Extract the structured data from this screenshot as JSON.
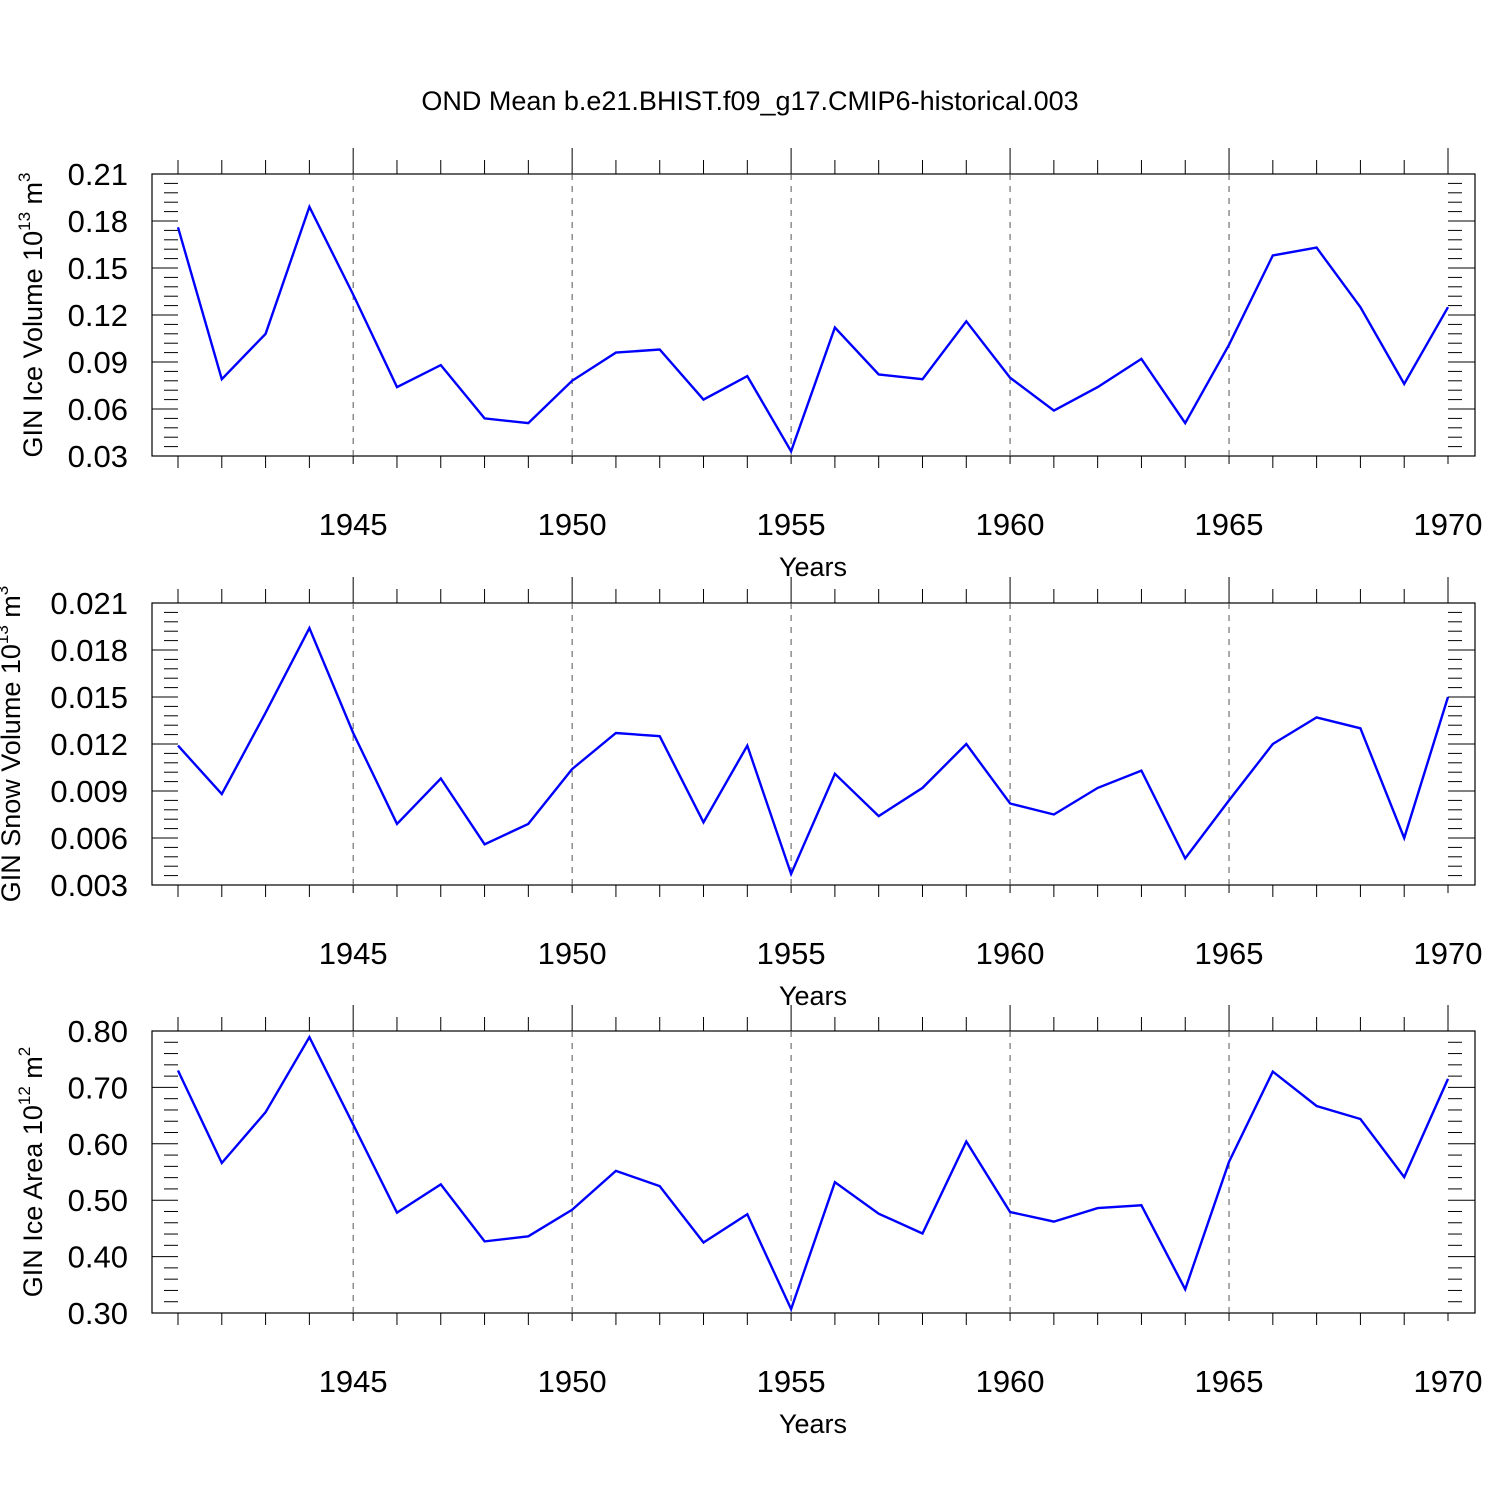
{
  "figure": {
    "title": "OND Mean b.e21.BHIST.f09_g17.CMIP6-historical.003"
  },
  "chart_data": [
    {
      "type": "line",
      "ylabel_main": "GIN Ice Volume 10",
      "ylabel_exp": "13",
      "ylabel_unit": " m",
      "ylabel_unit_exp": "3",
      "xlabel": "Years",
      "xlim": [
        1941,
        1970
      ],
      "ylim": [
        0.03,
        0.21
      ],
      "yticks": [
        "0.03",
        "0.06",
        "0.09",
        "0.12",
        "0.15",
        "0.18",
        "0.21"
      ],
      "xticks": [
        "1945",
        "1950",
        "1955",
        "1960",
        "1965",
        "1970"
      ],
      "grid": "vertical dashed at major x ticks",
      "color": "#0000ff",
      "x": [
        1941,
        1942,
        1943,
        1944,
        1945,
        1946,
        1947,
        1948,
        1949,
        1950,
        1951,
        1952,
        1953,
        1954,
        1955,
        1956,
        1957,
        1958,
        1959,
        1960,
        1961,
        1962,
        1963,
        1964,
        1965,
        1966,
        1967,
        1968,
        1969,
        1970
      ],
      "y": [
        0.176,
        0.079,
        0.108,
        0.189,
        0.133,
        0.074,
        0.088,
        0.054,
        0.051,
        0.078,
        0.096,
        0.098,
        0.066,
        0.081,
        0.033,
        0.112,
        0.082,
        0.079,
        0.116,
        0.08,
        0.059,
        0.074,
        0.092,
        0.051,
        0.101,
        0.158,
        0.163,
        0.125,
        0.076,
        0.125
      ]
    },
    {
      "type": "line",
      "ylabel_main": "GIN Snow Volume 10",
      "ylabel_exp": "13",
      "ylabel_unit": " m",
      "ylabel_unit_exp": "3",
      "xlabel": "Years",
      "xlim": [
        1941,
        1970
      ],
      "ylim": [
        0.003,
        0.021
      ],
      "yticks": [
        "0.003",
        "0.006",
        "0.009",
        "0.012",
        "0.015",
        "0.018",
        "0.021"
      ],
      "xticks": [
        "1945",
        "1950",
        "1955",
        "1960",
        "1965",
        "1970"
      ],
      "grid": "vertical dashed at major x ticks",
      "color": "#0000ff",
      "x": [
        1941,
        1942,
        1943,
        1944,
        1945,
        1946,
        1947,
        1948,
        1949,
        1950,
        1951,
        1952,
        1953,
        1954,
        1955,
        1956,
        1957,
        1958,
        1959,
        1960,
        1961,
        1962,
        1963,
        1964,
        1965,
        1966,
        1967,
        1968,
        1969,
        1970
      ],
      "y": [
        0.0119,
        0.0088,
        0.014,
        0.0194,
        0.0127,
        0.0069,
        0.0098,
        0.0056,
        0.0069,
        0.0104,
        0.0127,
        0.0125,
        0.007,
        0.0119,
        0.0037,
        0.0101,
        0.0074,
        0.0092,
        0.012,
        0.0082,
        0.0075,
        0.0092,
        0.0103,
        0.0047,
        0.0084,
        0.012,
        0.0137,
        0.013,
        0.006,
        0.015
      ]
    },
    {
      "type": "line",
      "ylabel_main": "GIN Ice Area 10",
      "ylabel_exp": "12",
      "ylabel_unit": " m",
      "ylabel_unit_exp": "2",
      "xlabel": "Years",
      "xlim": [
        1941,
        1970
      ],
      "ylim": [
        0.3,
        0.8
      ],
      "yticks": [
        "0.30",
        "0.40",
        "0.50",
        "0.60",
        "0.70",
        "0.80"
      ],
      "xticks": [
        "1945",
        "1950",
        "1955",
        "1960",
        "1965",
        "1970"
      ],
      "grid": "vertical dashed at major x ticks",
      "color": "#0000ff",
      "x": [
        1941,
        1942,
        1943,
        1944,
        1945,
        1946,
        1947,
        1948,
        1949,
        1950,
        1951,
        1952,
        1953,
        1954,
        1955,
        1956,
        1957,
        1958,
        1959,
        1960,
        1961,
        1962,
        1963,
        1964,
        1965,
        1966,
        1967,
        1968,
        1969,
        1970
      ],
      "y": [
        0.73,
        0.566,
        0.656,
        0.789,
        0.634,
        0.478,
        0.528,
        0.427,
        0.436,
        0.483,
        0.552,
        0.525,
        0.425,
        0.475,
        0.307,
        0.532,
        0.476,
        0.441,
        0.604,
        0.479,
        0.462,
        0.486,
        0.491,
        0.342,
        0.568,
        0.728,
        0.667,
        0.644,
        0.541,
        0.715
      ]
    }
  ]
}
